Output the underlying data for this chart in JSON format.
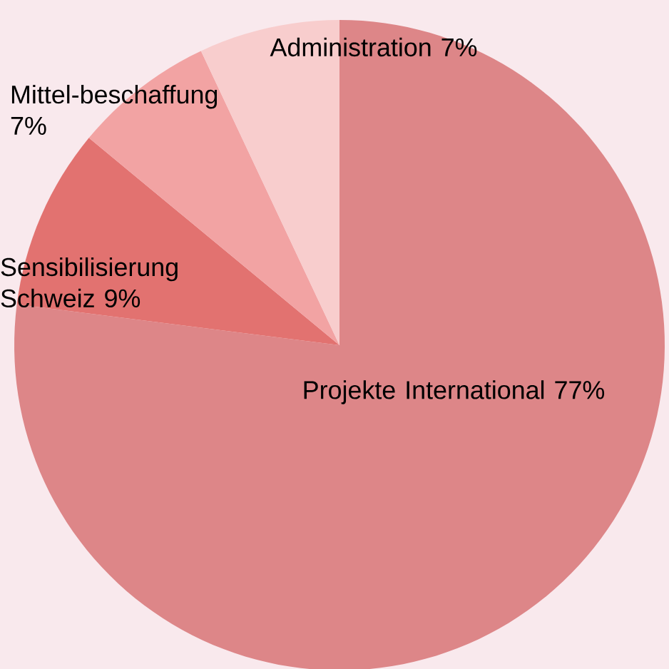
{
  "chart_data": {
    "type": "pie",
    "categories": [
      "Projekte International",
      "Sensibilisierung Schweiz",
      "Mittel-beschaffung",
      "Administration"
    ],
    "values": [
      77,
      9,
      7,
      7
    ],
    "value_labels": [
      "77%",
      "9%",
      "7%",
      "7%"
    ],
    "colors": [
      "#dd8688",
      "#e27270",
      "#f2a3a3",
      "#f8cdcd"
    ]
  }
}
